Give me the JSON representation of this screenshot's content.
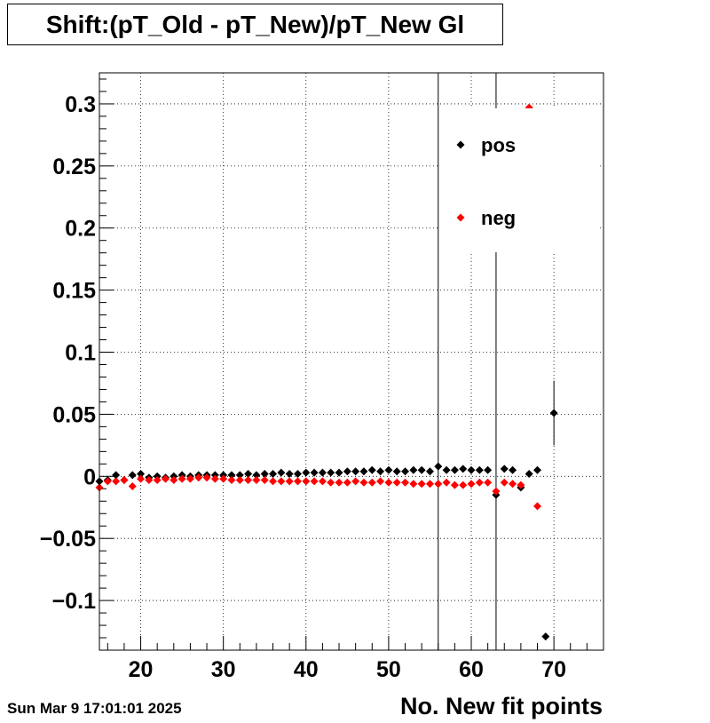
{
  "title": "Shift:(pT_Old - pT_New)/pT_New Gl",
  "timestamp": "Sun Mar  9 17:01:01 2025",
  "chart_data": {
    "type": "scatter",
    "title": "Shift:(pT_Old - pT_New)/pT_New Gl",
    "xlabel": "No. New fit points",
    "ylabel": "",
    "xlim": [
      15,
      76
    ],
    "ylim": [
      -0.14,
      0.325
    ],
    "x_ticks": [
      20,
      30,
      40,
      50,
      60,
      70
    ],
    "x_tick_labels": [
      "20",
      "30",
      "40",
      "50",
      "60",
      "70"
    ],
    "y_ticks": [
      -0.1,
      -0.05,
      0,
      0.05,
      0.1,
      0.15,
      0.2,
      0.25,
      0.3
    ],
    "y_tick_labels": [
      "−0.1",
      "−0.05",
      "0",
      "0.05",
      "0.1",
      "0.15",
      "0.2",
      "0.25",
      "0.3"
    ],
    "grid": true,
    "legend_position": "top-right",
    "series": [
      {
        "name": "pos",
        "color": "#000000",
        "x": [
          15,
          16,
          17,
          18,
          19,
          20,
          21,
          22,
          23,
          24,
          25,
          26,
          27,
          28,
          29,
          30,
          31,
          32,
          33,
          34,
          35,
          36,
          37,
          38,
          39,
          40,
          41,
          42,
          43,
          44,
          45,
          46,
          47,
          48,
          49,
          50,
          51,
          52,
          53,
          54,
          55,
          56,
          57,
          58,
          59,
          60,
          61,
          62,
          63,
          64,
          65,
          66,
          67,
          68,
          69,
          70
        ],
        "y": [
          -0.004,
          -0.003,
          0.001,
          -0.003,
          0.001,
          0.002,
          -0.001,
          0.0,
          -0.001,
          0.0,
          0.001,
          0.0,
          0.001,
          0.001,
          0.001,
          0.001,
          0.001,
          0.001,
          0.002,
          0.001,
          0.002,
          0.002,
          0.003,
          0.002,
          0.002,
          0.003,
          0.003,
          0.003,
          0.003,
          0.003,
          0.004,
          0.004,
          0.004,
          0.005,
          0.004,
          0.005,
          0.004,
          0.004,
          0.005,
          0.005,
          0.004,
          0.008,
          0.005,
          0.005,
          0.006,
          0.005,
          0.005,
          0.005,
          -0.015,
          0.006,
          0.005,
          -0.009,
          0.002,
          0.005,
          -0.129,
          0.051
        ],
        "errors": [
          0,
          0,
          0,
          0,
          0,
          0,
          0,
          0,
          0,
          0,
          0,
          0,
          0,
          0,
          0,
          0,
          0,
          0,
          0,
          0,
          0,
          0,
          0,
          0,
          0,
          0,
          0,
          0,
          0,
          0,
          0,
          0,
          0,
          0,
          0,
          0,
          0,
          0,
          0,
          0,
          0,
          0.5,
          0,
          0,
          0,
          0,
          0,
          0,
          0.6,
          0,
          0,
          0,
          0,
          0,
          0,
          0.026
        ]
      },
      {
        "name": "neg",
        "color": "#ff0000",
        "x": [
          15,
          16,
          17,
          18,
          19,
          20,
          21,
          22,
          23,
          24,
          25,
          26,
          27,
          28,
          29,
          30,
          31,
          32,
          33,
          34,
          35,
          36,
          37,
          38,
          39,
          40,
          41,
          42,
          43,
          44,
          45,
          46,
          47,
          48,
          49,
          50,
          51,
          52,
          53,
          54,
          55,
          56,
          57,
          58,
          59,
          60,
          61,
          62,
          63,
          64,
          65,
          66,
          67,
          68
        ],
        "y": [
          -0.009,
          -0.004,
          -0.004,
          -0.003,
          -0.008,
          -0.002,
          -0.003,
          -0.003,
          -0.002,
          -0.003,
          -0.002,
          -0.002,
          -0.001,
          -0.001,
          -0.002,
          -0.002,
          -0.003,
          -0.003,
          -0.003,
          -0.003,
          -0.003,
          -0.004,
          -0.004,
          -0.004,
          -0.004,
          -0.004,
          -0.004,
          -0.004,
          -0.005,
          -0.005,
          -0.005,
          -0.004,
          -0.005,
          -0.005,
          -0.004,
          -0.005,
          -0.005,
          -0.005,
          -0.006,
          -0.006,
          -0.006,
          -0.006,
          -0.005,
          -0.007,
          -0.007,
          -0.006,
          -0.005,
          -0.005,
          -0.012,
          -0.005,
          -0.006,
          -0.007,
          0.297,
          -0.024
        ]
      }
    ]
  }
}
